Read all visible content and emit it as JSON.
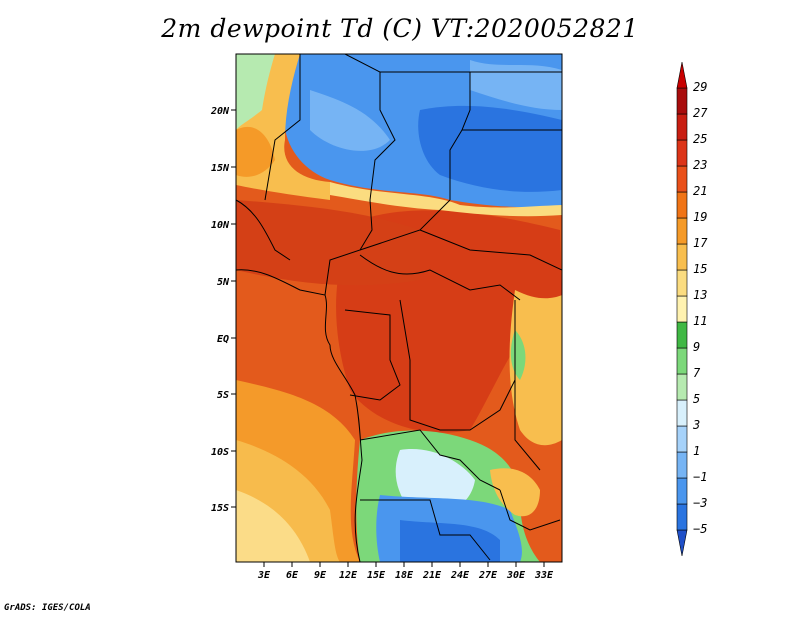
{
  "title": "2m dewpoint Td (C) VT:2020052821",
  "credit": "GrADS: IGES/COLA",
  "map": {
    "y_axis_labels": [
      "20N",
      "15N",
      "10N",
      "5N",
      "EQ",
      "5S",
      "10S",
      "15S"
    ],
    "x_axis_labels": [
      "3E",
      "6E",
      "9E",
      "12E",
      "15E",
      "18E",
      "21E",
      "24E",
      "27E",
      "30E",
      "33E"
    ]
  },
  "colorbar": {
    "levels": [
      "29",
      "27",
      "25",
      "23",
      "21",
      "19",
      "17",
      "15",
      "13",
      "11",
      "9",
      "7",
      "5",
      "3",
      "1",
      "−1",
      "−3",
      "−5"
    ],
    "colors": [
      "#1f50c8",
      "#2a74e0",
      "#4a96ee",
      "#76b4f4",
      "#a6d2fa",
      "#d8f0fc",
      "#b6eab0",
      "#7cd87a",
      "#40b844",
      "#fff2b0",
      "#fbdc80",
      "#f8be4e",
      "#f59a28",
      "#f07416",
      "#e9501a",
      "#dc3418",
      "#c81e12",
      "#a80d0d",
      "#c80000"
    ]
  }
}
